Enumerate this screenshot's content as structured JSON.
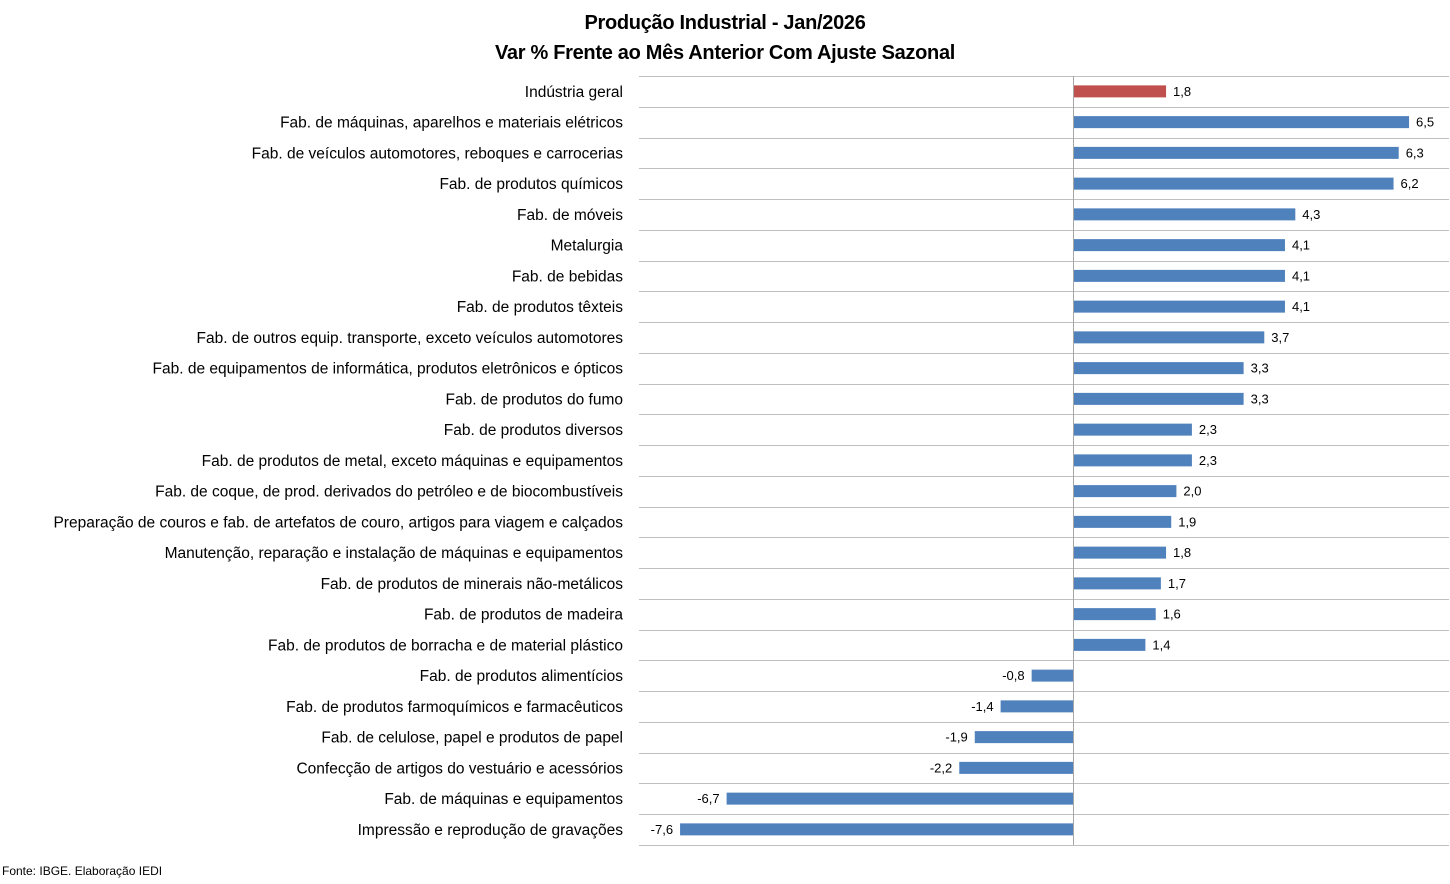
{
  "chart_data": {
    "type": "bar",
    "orientation": "horizontal",
    "title": "Produção Industrial - Jan/2026",
    "subtitle": "Var % Frente ao Mês Anterior Com Ajuste Sazonal",
    "xlabel": "",
    "ylabel": "",
    "xlim": [
      -8.4,
      7.3
    ],
    "grid": true,
    "legend": "none",
    "categories": [
      "Indústria geral",
      "Fab. de máquinas, aparelhos e materiais elétricos",
      "Fab. de veículos automotores, reboques e carrocerias",
      "Fab. de produtos químicos",
      "Fab. de móveis",
      "Metalurgia",
      "Fab. de bebidas",
      "Fab. de produtos têxteis",
      "Fab. de outros equip. transporte, exceto veículos automotores",
      "Fab. de equipamentos de informática, produtos eletrônicos e ópticos",
      "Fab. de produtos do fumo",
      "Fab. de produtos diversos",
      "Fab. de produtos de metal, exceto máquinas e equipamentos",
      "Fab. de coque, de prod. derivados do petróleo e de biocombustíveis",
      "Preparação de couros e fab. de artefatos de couro, artigos para viagem e calçados",
      "Manutenção, reparação e instalação de máquinas e equipamentos",
      "Fab. de produtos de minerais não-metálicos",
      "Fab. de produtos de madeira",
      "Fab. de produtos de borracha e de material plástico",
      "Fab. de produtos alimentícios",
      "Fab. de produtos farmoquímicos e farmacêuticos",
      "Fab. de celulose, papel e produtos de papel",
      "Confecção de artigos do vestuário e acessórios",
      "Fab. de máquinas e equipamentos",
      "Impressão e reprodução de gravações"
    ],
    "values": [
      1.8,
      6.5,
      6.3,
      6.2,
      4.3,
      4.1,
      4.1,
      4.1,
      3.7,
      3.3,
      3.3,
      2.3,
      2.3,
      2.0,
      1.9,
      1.8,
      1.7,
      1.6,
      1.4,
      -0.8,
      -1.4,
      -1.9,
      -2.2,
      -6.7,
      -7.6
    ],
    "value_labels": [
      "1,8",
      "6,5",
      "6,3",
      "6,2",
      "4,3",
      "4,1",
      "4,1",
      "4,1",
      "3,7",
      "3,3",
      "3,3",
      "2,3",
      "2,3",
      "2,0",
      "1,9",
      "1,8",
      "1,7",
      "1,6",
      "1,4",
      "-0,8",
      "-1,4",
      "-1,9",
      "-2,2",
      "-6,7",
      "-7,6"
    ],
    "highlight_index": 0,
    "colors": {
      "default": "#4f81bd",
      "highlight": "#c0504d",
      "grid": "#bfbfbf",
      "axis": "#a6a6a6"
    }
  },
  "source": "Fonte: IBGE. Elaboração IEDI"
}
